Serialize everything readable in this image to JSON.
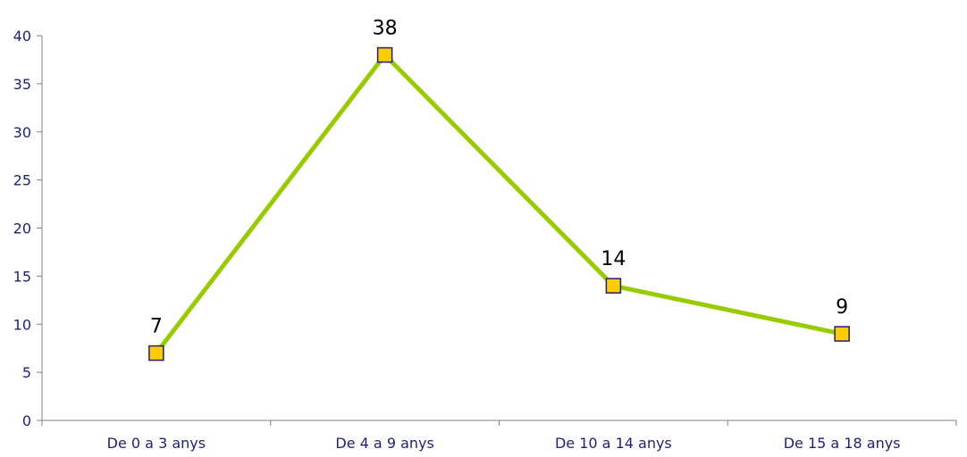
{
  "chart_data": {
    "type": "line",
    "title": "",
    "xlabel": "",
    "ylabel": "",
    "categories": [
      "De 0 a 3 anys",
      "De 4 a 9 anys",
      "De 10 a 14 anys",
      "De 15 a 18 anys"
    ],
    "series": [
      {
        "values": [
          7,
          38,
          14,
          9
        ],
        "data_labels": [
          "7",
          "38",
          "14",
          "9"
        ],
        "line_color": "#99cc00",
        "marker": "square",
        "marker_fill": "#ffcc00",
        "marker_edge": "#1f1f7a"
      }
    ],
    "ylim": [
      0,
      40
    ],
    "yticks": [
      0,
      5,
      10,
      15,
      20,
      25,
      30,
      35,
      40
    ],
    "ytick_labels": [
      "0",
      "5",
      "10",
      "15",
      "20",
      "25",
      "30",
      "35",
      "40"
    ],
    "grid": false,
    "legend": "none",
    "axis_color": "#808080",
    "label_color": "#1f1f7a"
  }
}
